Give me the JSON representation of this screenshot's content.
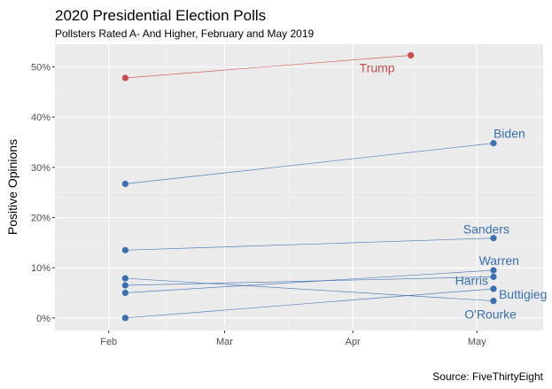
{
  "chart_data": {
    "type": "line",
    "title": "2020 Presidential Election Polls",
    "subtitle": "Pollsters Rated A- And Higher, February and May 2019",
    "xlabel": "",
    "ylabel": "Positive Opinions",
    "caption": "Source: FiveThirtyEight",
    "x_ticks": [
      "Feb",
      "Mar",
      "Apr",
      "May"
    ],
    "x_tick_dates": [
      "2019-02-01",
      "2019-03-01",
      "2019-04-01",
      "2019-05-01"
    ],
    "xlim": [
      "2019-01-19",
      "2019-05-17"
    ],
    "y_ticks": [
      "0%",
      "10%",
      "20%",
      "30%",
      "40%",
      "50%"
    ],
    "y_tick_values": [
      0,
      10,
      20,
      30,
      40,
      50
    ],
    "ylim": [
      -2.5,
      54.5
    ],
    "grid": true,
    "legend": "none",
    "series": [
      {
        "name": "Trump",
        "color": "#cc4c4c",
        "x": [
          "2019-02-05",
          "2019-04-15"
        ],
        "values": [
          47.8,
          52.3
        ]
      },
      {
        "name": "Biden",
        "color": "#3a6fb0",
        "x": [
          "2019-02-05",
          "2019-05-05"
        ],
        "values": [
          26.7,
          34.8
        ]
      },
      {
        "name": "Sanders",
        "color": "#3a6fb0",
        "x": [
          "2019-02-05",
          "2019-05-05"
        ],
        "values": [
          13.5,
          15.9
        ]
      },
      {
        "name": "Warren",
        "color": "#3a6fb0",
        "x": [
          "2019-02-05",
          "2019-05-05"
        ],
        "values": [
          5.0,
          9.5
        ]
      },
      {
        "name": "Harris",
        "color": "#3a6fb0",
        "x": [
          "2019-02-05",
          "2019-05-05"
        ],
        "values": [
          6.5,
          8.2
        ]
      },
      {
        "name": "Buttigieg",
        "color": "#3a6fb0",
        "x": [
          "2019-02-05",
          "2019-05-05"
        ],
        "values": [
          0.0,
          5.8
        ]
      },
      {
        "name": "O'Rourke",
        "color": "#3a6fb0",
        "x": [
          "2019-02-05",
          "2019-05-05"
        ],
        "values": [
          7.9,
          3.4
        ]
      }
    ]
  }
}
